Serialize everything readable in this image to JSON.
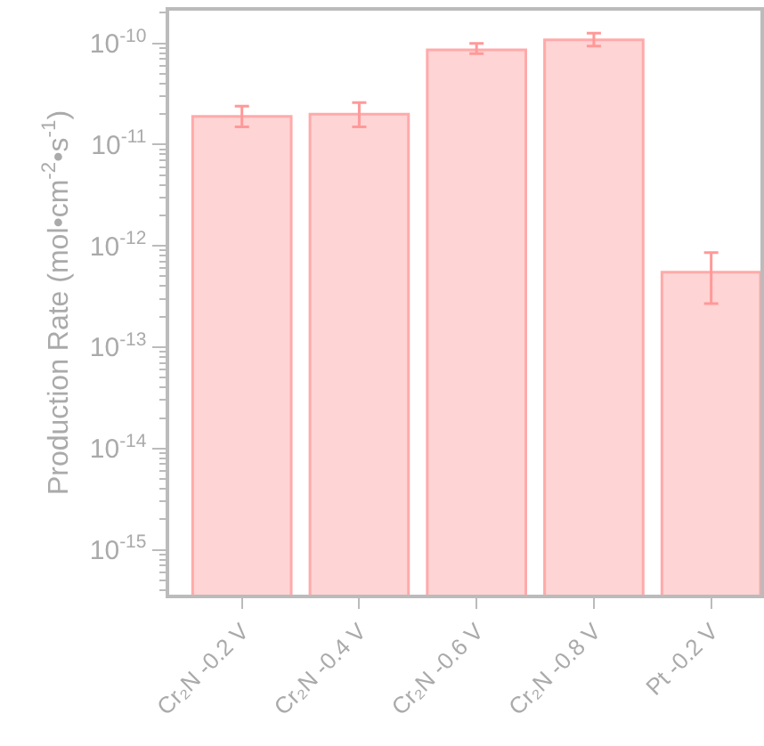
{
  "chart_data": {
    "type": "bar",
    "ylabel": "Production Rate (mol•cm$^{-2}$•s$^{-1}$)",
    "categories": [
      "Cr₂N -0.2 V",
      "Cr₂N -0.4 V",
      "Cr₂N -0.6 V",
      "Cr₂N -0.8 V",
      "Pt -0.2 V"
    ],
    "series": [
      {
        "color": "#ffd4d4",
        "values": [
          1.9e-11,
          2e-11,
          8.6e-11,
          1.08e-10,
          5.5e-13
        ],
        "errors": [
          [
            1.5e-11,
            2.4e-11
          ],
          [
            1.5e-11,
            2.6e-11
          ],
          [
            7.9e-11,
            1e-10
          ],
          [
            9.4e-11,
            1.26e-10
          ],
          [
            2.7e-13,
            8.6e-13
          ]
        ]
      }
    ],
    "log": true,
    "ylim": [
      3.6e-16,
      2.1e-10
    ],
    "yticks": [
      {
        "value": 1e-15,
        "label": "10$^{-15}$"
      },
      {
        "value": 1e-14,
        "label": "10$^{-14}$"
      },
      {
        "value": 1e-13,
        "label": "10$^{-13}$"
      },
      {
        "value": 1e-12,
        "label": "10$^{-12}$"
      },
      {
        "value": 1e-11,
        "label": "10$^{-11}$"
      },
      {
        "value": 1e-10,
        "label": "10$^{-10}$"
      }
    ],
    "data_labels": false
  }
}
